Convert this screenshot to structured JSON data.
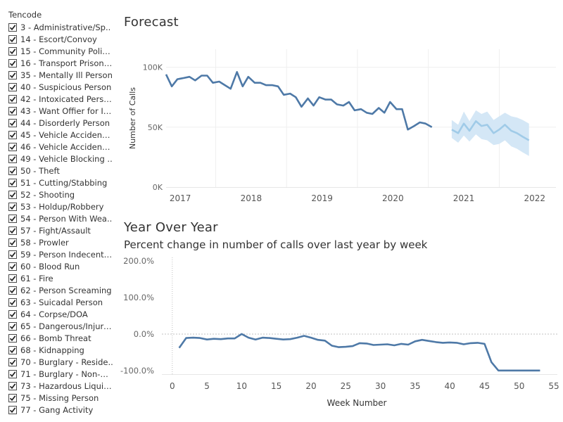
{
  "filter": {
    "title": "Tencode",
    "items": [
      {
        "label": "3 - Administrative/Sp..",
        "checked": true
      },
      {
        "label": "14 - Escort/Convoy",
        "checked": true
      },
      {
        "label": "15 - Community Polici..",
        "checked": true
      },
      {
        "label": "16 - Transport Prisone..",
        "checked": true
      },
      {
        "label": "35 - Mentally Ill Person",
        "checked": true
      },
      {
        "label": "40 - Suspicious Person",
        "checked": true
      },
      {
        "label": "42 - Intoxicated Person",
        "checked": true
      },
      {
        "label": "43 - Want Offier for In..",
        "checked": true
      },
      {
        "label": "44 - Disorderly Person",
        "checked": true
      },
      {
        "label": "45 - Vehicle Accident - ..",
        "checked": true
      },
      {
        "label": "46 - Vehicle Accident - ..",
        "checked": true
      },
      {
        "label": "49 - Vehicle Blocking ..",
        "checked": true
      },
      {
        "label": "50 - Theft",
        "checked": true
      },
      {
        "label": "51 - Cutting/Stabbing",
        "checked": true
      },
      {
        "label": "52 - Shooting",
        "checked": true
      },
      {
        "label": "53 - Holdup/Robbery",
        "checked": true
      },
      {
        "label": "54 - Person With Wea..",
        "checked": true
      },
      {
        "label": "57 - Fight/Assault",
        "checked": true
      },
      {
        "label": "58 - Prowler",
        "checked": true
      },
      {
        "label": "59 - Person Indecently..",
        "checked": true
      },
      {
        "label": "60 - Blood Run",
        "checked": true
      },
      {
        "label": "61 - Fire",
        "checked": true
      },
      {
        "label": "62 - Person Screaming",
        "checked": true
      },
      {
        "label": "63 - Suicadal Person",
        "checked": true
      },
      {
        "label": "64 - Corpse/DOA",
        "checked": true
      },
      {
        "label": "65 - Dangerous/Injure..",
        "checked": true
      },
      {
        "label": "66 - Bomb Threat",
        "checked": true
      },
      {
        "label": "68 - Kidnapping",
        "checked": true
      },
      {
        "label": "70 - Burglary - Reside..",
        "checked": true
      },
      {
        "label": "71 - Burglary - Non-Re..",
        "checked": true
      },
      {
        "label": "73 - Hazardous Liquid/..",
        "checked": true
      },
      {
        "label": "75 - Missing Person",
        "checked": true
      },
      {
        "label": "77 - Gang Activity",
        "checked": true
      }
    ]
  },
  "forecast": {
    "title": "Forecast"
  },
  "yoy": {
    "title": "Year Over Year",
    "subtitle": "Percent change in number of calls over last year by week"
  },
  "colors": {
    "actual": "#4e79a7",
    "forecast": "#a0cbe8",
    "forecast_band": "#d4e7f6",
    "gridline": "#efefef",
    "zero_line": "#c0c0c0",
    "checkmark": "#222222"
  },
  "chart_data": [
    {
      "type": "line",
      "title": "Forecast",
      "ylabel": "Number of Calls",
      "xlabel": "",
      "x_ticks": [
        "2017",
        "2018",
        "2019",
        "2020",
        "2021",
        "2022"
      ],
      "y_ticks": [
        "0K",
        "50K",
        "100K"
      ],
      "ylim": [
        0,
        115000
      ],
      "xlim": [
        2016.8,
        2022.3
      ],
      "grid": true,
      "legend": "none",
      "series": [
        {
          "role": "actual",
          "x": [
            2016.8,
            2016.88,
            2016.96,
            2017.05,
            2017.13,
            2017.21,
            2017.3,
            2017.38,
            2017.46,
            2017.55,
            2017.63,
            2017.71,
            2017.8,
            2017.88,
            2017.96,
            2018.05,
            2018.13,
            2018.21,
            2018.3,
            2018.38,
            2018.46,
            2018.55,
            2018.63,
            2018.71,
            2018.8,
            2018.88,
            2018.96,
            2019.05,
            2019.13,
            2019.21,
            2019.3,
            2019.38,
            2019.46,
            2019.55,
            2019.63,
            2019.71,
            2019.8,
            2019.88,
            2019.96,
            2020.05,
            2020.13,
            2020.21,
            2020.3,
            2020.38,
            2020.46,
            2020.55,
            2020.63,
            2020.71,
            2020.8
          ],
          "y": [
            94000,
            84000,
            90000,
            91000,
            92000,
            89000,
            93000,
            93000,
            87000,
            88000,
            85000,
            82000,
            96000,
            84000,
            92000,
            87000,
            87000,
            85000,
            85000,
            84000,
            77000,
            78000,
            75000,
            67000,
            74000,
            68000,
            75000,
            73000,
            73000,
            69000,
            68000,
            71000,
            64000,
            65000,
            62000,
            61000,
            66000,
            62000,
            71000,
            65000,
            65000,
            48000,
            51000,
            54000,
            53000,
            50000,
            null,
            null,
            null
          ]
        },
        {
          "role": "forecast",
          "x": [
            2020.83,
            2020.92,
            2021.0,
            2021.08,
            2021.17,
            2021.25,
            2021.33,
            2021.42,
            2021.5,
            2021.58,
            2021.67,
            2021.75,
            2021.83,
            2021.92
          ],
          "y": [
            48000,
            45000,
            53000,
            47000,
            55000,
            51000,
            52000,
            45000,
            48000,
            52000,
            47000,
            45000,
            42000,
            39000
          ],
          "lower": [
            41000,
            37000,
            43000,
            38000,
            44000,
            40000,
            39000,
            35000,
            36000,
            39000,
            34000,
            32000,
            29000,
            26000
          ],
          "upper": [
            56000,
            52000,
            63000,
            55000,
            64000,
            61000,
            63000,
            56000,
            59000,
            62000,
            59000,
            58000,
            56000,
            53000
          ]
        }
      ]
    },
    {
      "type": "line",
      "title": "Year Over Year",
      "subtitle": "Percent change in number of calls over last year by week",
      "xlabel": "Week Number",
      "ylabel": "",
      "x_ticks": [
        "0",
        "5",
        "10",
        "15",
        "20",
        "25",
        "30",
        "35",
        "40",
        "45",
        "50",
        "55"
      ],
      "y_ticks": [
        "200.0%",
        "100.0%",
        "0.0%",
        "-100.0%"
      ],
      "xlim": [
        -1.5,
        55.5
      ],
      "ylim": [
        -110,
        210
      ],
      "grid": false,
      "legend": "none",
      "series": [
        {
          "x": [
            1,
            2,
            3,
            4,
            5,
            6,
            7,
            8,
            9,
            10,
            11,
            12,
            13,
            14,
            15,
            16,
            17,
            18,
            19,
            20,
            21,
            22,
            23,
            24,
            25,
            26,
            27,
            28,
            29,
            30,
            31,
            32,
            33,
            34,
            35,
            36,
            37,
            38,
            39,
            40,
            41,
            42,
            43,
            44,
            45,
            46,
            47,
            48,
            49,
            50,
            51,
            52,
            53
          ],
          "y": [
            -38,
            -11,
            -10,
            -11,
            -15,
            -13,
            -14,
            -12,
            -12,
            0,
            -10,
            -15,
            -10,
            -11,
            -13,
            -15,
            -14,
            -10,
            -5,
            -10,
            -16,
            -18,
            -32,
            -36,
            -35,
            -33,
            -25,
            -26,
            -30,
            -29,
            -28,
            -31,
            -27,
            -29,
            -20,
            -16,
            -19,
            -22,
            -24,
            -23,
            -24,
            -28,
            -25,
            -24,
            -27,
            -77,
            -100,
            -100,
            -100,
            -100,
            -100,
            -100,
            -100
          ]
        }
      ]
    }
  ]
}
